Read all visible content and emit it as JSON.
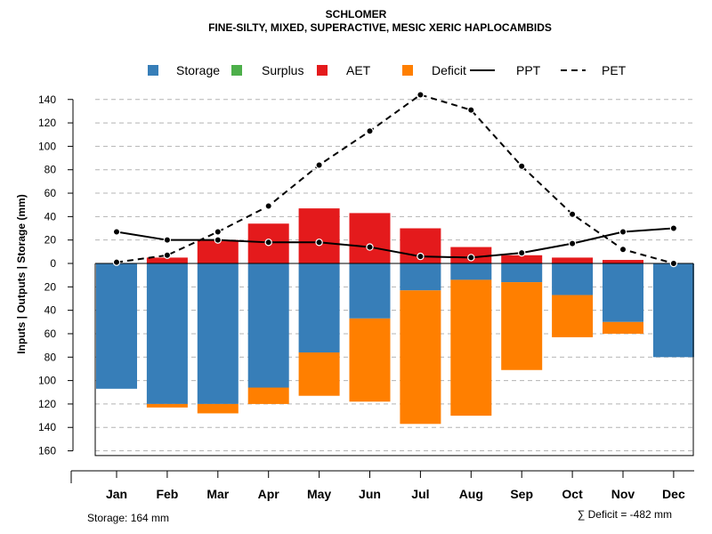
{
  "chart_data": {
    "type": "bar",
    "title": "SCHLOMER",
    "subtitle": "FINE-SILTY, MIXED, SUPERACTIVE, MESIC XERIC HAPLOCAMBIDS",
    "ylabel": "Inputs | Outputs | Storage    (mm)",
    "ylim": [
      -164,
      150
    ],
    "y_ticks": [
      140,
      120,
      100,
      80,
      60,
      40,
      20,
      0,
      -20,
      -40,
      -60,
      -80,
      -100,
      -120,
      -140,
      -160
    ],
    "y_tick_labels": [
      "140",
      "120",
      "100",
      "80",
      "60",
      "40",
      "20",
      "0",
      "20",
      "40",
      "60",
      "80",
      "100",
      "120",
      "140",
      "160"
    ],
    "grid": true,
    "categories": [
      "Jan",
      "Feb",
      "Mar",
      "Apr",
      "May",
      "Jun",
      "Jul",
      "Aug",
      "Sep",
      "Oct",
      "Nov",
      "Dec"
    ],
    "legend": [
      {
        "label": "Storage",
        "color": "#377EB8",
        "kind": "box"
      },
      {
        "label": "Surplus",
        "color": "#4DAF4A",
        "kind": "box"
      },
      {
        "label": "AET",
        "color": "#E41A1C",
        "kind": "box"
      },
      {
        "label": "Deficit",
        "color": "#FF7F00",
        "kind": "box"
      },
      {
        "label": "PPT",
        "color": "#000000",
        "kind": "solid"
      },
      {
        "label": "PET",
        "color": "#000000",
        "kind": "dashed"
      }
    ],
    "series": [
      {
        "name": "AET",
        "color": "#E41A1C",
        "values": [
          0,
          5,
          20,
          34,
          47,
          43,
          30,
          14,
          7,
          5,
          3,
          0
        ]
      },
      {
        "name": "Storage",
        "color": "#377EB8",
        "values": [
          107,
          120,
          120,
          106,
          76,
          47,
          23,
          14,
          16,
          27,
          50,
          80
        ]
      },
      {
        "name": "Deficit",
        "color": "#FF7F00",
        "values": [
          0,
          3,
          8,
          14,
          37,
          71,
          114,
          116,
          75,
          36,
          10,
          0
        ]
      },
      {
        "name": "Surplus",
        "color": "#4DAF4A",
        "values": [
          0,
          0,
          0,
          0,
          0,
          0,
          0,
          0,
          0,
          0,
          0,
          0
        ]
      },
      {
        "name": "PPT",
        "color": "#000000",
        "values": [
          27,
          20,
          20,
          18,
          18,
          14,
          6,
          5,
          9,
          17,
          27,
          30
        ]
      },
      {
        "name": "PET",
        "color": "#000000",
        "values": [
          1,
          7,
          27,
          49,
          84,
          113,
          144,
          131,
          83,
          42,
          12,
          0
        ]
      }
    ],
    "storage_label": "Storage: 164 mm",
    "deficit_label": "∑ Deficit = -482 mm"
  }
}
